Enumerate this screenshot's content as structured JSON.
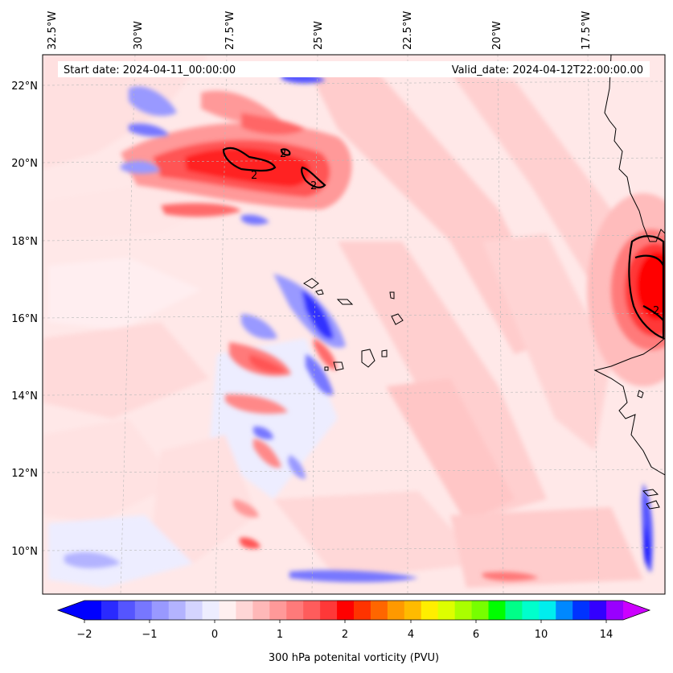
{
  "header": {
    "start_date": "Start date: 2024-04-11_00:00:00",
    "valid_date": "Valid_date: 2024-04-12T22:00:00.00"
  },
  "axes": {
    "lon_labels": [
      "32.5°W",
      "30°W",
      "27.5°W",
      "25°W",
      "22.5°W",
      "20°W",
      "17.5°W"
    ],
    "lat_labels": [
      "22°N",
      "20°N",
      "18°N",
      "16°N",
      "14°N",
      "12°N",
      "10°N"
    ]
  },
  "contour_label": "2",
  "colorbar": {
    "label": "300 hPa potenital vorticity (PVU)",
    "tick_labels": [
      "−2",
      "−1",
      "0",
      "1",
      "2",
      "4",
      "6",
      "10",
      "14"
    ],
    "colors": [
      "#0000ff",
      "#2a2aff",
      "#5555ff",
      "#7777ff",
      "#9999ff",
      "#b3b3ff",
      "#d4d4ff",
      "#ededff",
      "#fff0f0",
      "#ffd6d6",
      "#ffb8b8",
      "#ff9999",
      "#ff7a7a",
      "#ff5c5c",
      "#ff3838",
      "#ff0000",
      "#ff3300",
      "#ff6600",
      "#ff9900",
      "#ffbb00",
      "#ffee00",
      "#ddff00",
      "#aaff00",
      "#77ff00",
      "#00ff00",
      "#00ff88",
      "#00ffcc",
      "#00eeee",
      "#0088ff",
      "#0033ff",
      "#3300ff",
      "#9900ff"
    ],
    "extend_low_color": "#0000ff",
    "extend_high_color": "#cc00ff"
  },
  "field_colors": {
    "background": "#ffe8e8",
    "weak_neg": "#ededff",
    "neg": "#b3b3ff",
    "strong_neg": "#3333ff",
    "weak_pos": "#ffd0d0",
    "pos": "#ff9999",
    "strong_pos": "#ff2020",
    "max_pos": "#ff0000",
    "coast": "#000000"
  }
}
